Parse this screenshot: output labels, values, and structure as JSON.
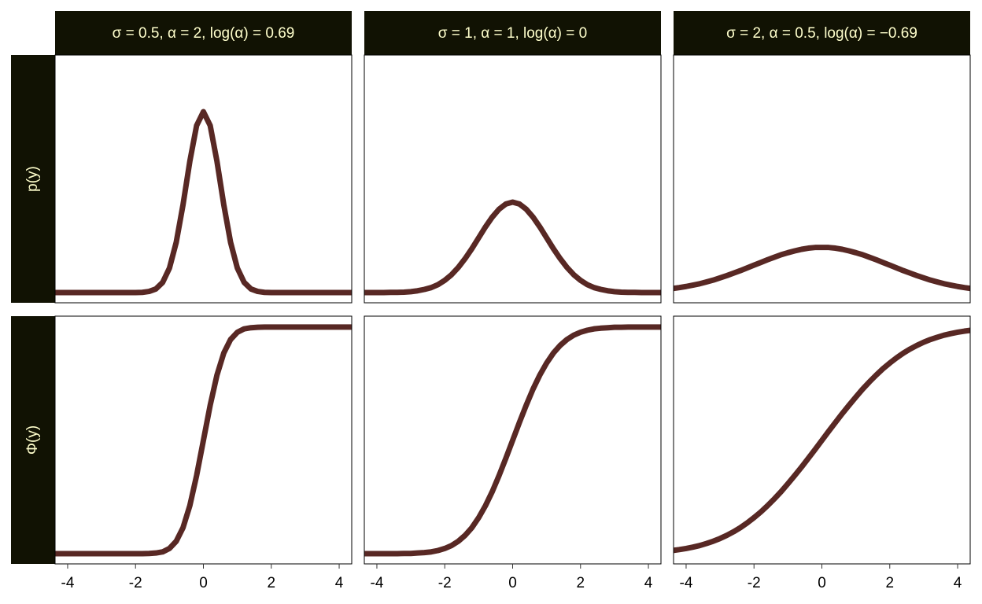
{
  "chart_data": {
    "type": "line",
    "columns": [
      "σ = 0.5, α = 2, log(α) = 0.69",
      "σ = 1, α = 1, log(α) = 0",
      "σ = 2, α = 0.5, log(α) = −0.69"
    ],
    "rows": [
      "p(y)",
      "Φ(y)"
    ],
    "color": "#582824",
    "xlim": [
      -4.37,
      4.37
    ],
    "xticks": [
      -4,
      -2,
      0,
      2,
      4
    ],
    "ylim": [
      -0.045,
      1.048
    ],
    "x": [
      -4.4,
      -4.2,
      -4.0,
      -3.8,
      -3.6,
      -3.4,
      -3.2,
      -3.0,
      -2.8,
      -2.6,
      -2.4,
      -2.2,
      -2.0,
      -1.8,
      -1.6,
      -1.4,
      -1.2,
      -1.0,
      -0.8,
      -0.6,
      -0.4,
      -0.2,
      0,
      0.2,
      0.4,
      0.6,
      0.8,
      1.0,
      1.2,
      1.4,
      1.6,
      1.8,
      2.0,
      2.2,
      2.4,
      2.6,
      2.8,
      3.0,
      3.2,
      3.4,
      3.6,
      3.8,
      4.0,
      4.2,
      4.4
    ],
    "panels": [
      [
        [
          0,
          0,
          0,
          0,
          0,
          0,
          0,
          0,
          0,
          0,
          0,
          0,
          0,
          0.001,
          0.005,
          0.016,
          0.045,
          0.108,
          0.222,
          0.388,
          0.579,
          0.737,
          0.798,
          0.737,
          0.579,
          0.388,
          0.222,
          0.108,
          0.045,
          0.016,
          0.005,
          0.001,
          0,
          0,
          0,
          0,
          0,
          0,
          0,
          0,
          0,
          0,
          0,
          0,
          0
        ],
        [
          0,
          0,
          0,
          0,
          0.001,
          0.001,
          0.002,
          0.004,
          0.008,
          0.014,
          0.022,
          0.035,
          0.054,
          0.079,
          0.111,
          0.15,
          0.194,
          0.242,
          0.29,
          0.333,
          0.368,
          0.391,
          0.399,
          0.391,
          0.368,
          0.333,
          0.29,
          0.242,
          0.194,
          0.15,
          0.111,
          0.079,
          0.054,
          0.035,
          0.022,
          0.014,
          0.008,
          0.004,
          0.002,
          0.001,
          0.001,
          0,
          0,
          0,
          0
        ],
        [
          0.018,
          0.022,
          0.027,
          0.033,
          0.039,
          0.047,
          0.055,
          0.065,
          0.075,
          0.086,
          0.097,
          0.109,
          0.121,
          0.133,
          0.145,
          0.156,
          0.167,
          0.176,
          0.184,
          0.191,
          0.196,
          0.199,
          0.199,
          0.199,
          0.196,
          0.191,
          0.184,
          0.176,
          0.167,
          0.156,
          0.145,
          0.133,
          0.121,
          0.109,
          0.097,
          0.086,
          0.075,
          0.065,
          0.055,
          0.047,
          0.039,
          0.033,
          0.027,
          0.022,
          0.018
        ]
      ],
      [
        [
          0,
          0,
          0,
          0,
          0,
          0,
          0,
          0,
          0,
          0,
          0,
          0,
          0,
          0,
          0.001,
          0.003,
          0.008,
          0.023,
          0.055,
          0.115,
          0.212,
          0.345,
          0.5,
          0.655,
          0.788,
          0.885,
          0.945,
          0.977,
          0.992,
          0.997,
          0.999,
          1,
          1,
          1,
          1,
          1,
          1,
          1,
          1,
          1,
          1,
          1,
          1,
          1,
          1
        ],
        [
          0,
          0,
          0,
          0,
          0,
          0,
          0.001,
          0.001,
          0.003,
          0.005,
          0.008,
          0.014,
          0.023,
          0.036,
          0.055,
          0.081,
          0.115,
          0.159,
          0.212,
          0.274,
          0.345,
          0.421,
          0.5,
          0.579,
          0.655,
          0.726,
          0.788,
          0.841,
          0.885,
          0.919,
          0.945,
          0.964,
          0.977,
          0.986,
          0.992,
          0.995,
          0.997,
          0.999,
          0.999,
          1,
          1,
          1,
          1,
          1,
          1
        ],
        [
          0.014,
          0.018,
          0.023,
          0.029,
          0.036,
          0.045,
          0.055,
          0.067,
          0.081,
          0.097,
          0.115,
          0.136,
          0.159,
          0.184,
          0.212,
          0.242,
          0.274,
          0.309,
          0.345,
          0.382,
          0.421,
          0.46,
          0.5,
          0.54,
          0.579,
          0.618,
          0.655,
          0.691,
          0.726,
          0.758,
          0.788,
          0.816,
          0.841,
          0.864,
          0.885,
          0.903,
          0.919,
          0.933,
          0.945,
          0.955,
          0.964,
          0.971,
          0.977,
          0.982,
          0.986
        ]
      ]
    ]
  }
}
